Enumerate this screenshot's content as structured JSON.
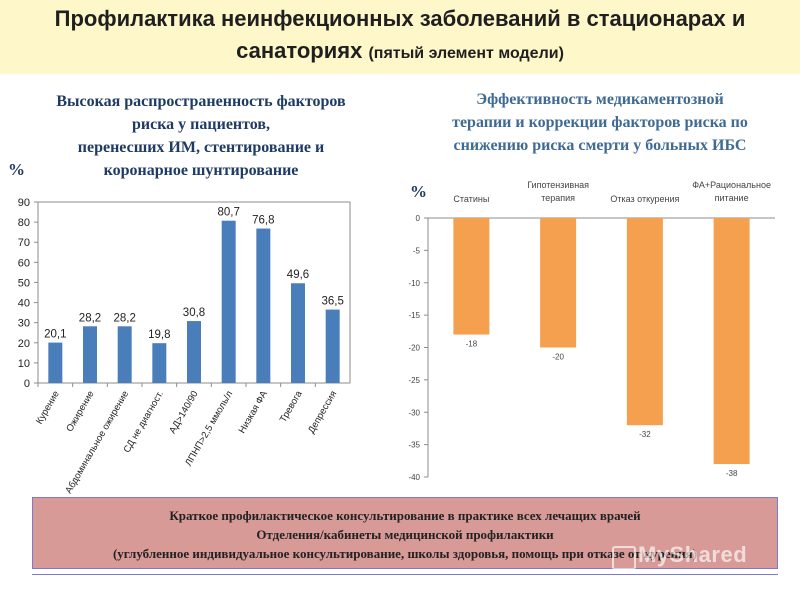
{
  "header": {
    "title_line1": "Профилактика неинфекционных заболеваний в стационарах и",
    "title_line2": "санаториях",
    "title_sub": "(пятый элемент модели)"
  },
  "left": {
    "title_lines": [
      "Высокая  распространенность факторов",
      "риска у пациентов,",
      "перенесших ИМ,  стентирование  и",
      "коронарное шунтирование"
    ],
    "unit_label": "%"
  },
  "right": {
    "title_lines": [
      "Эффективность медикаментозной",
      "терапии и коррекции факторов риска по",
      "снижению риска смерти у больных ИБС"
    ],
    "unit_label": "%"
  },
  "chart_data": [
    {
      "type": "bar",
      "title": "Высокая распространенность факторов риска у пациентов, перенесших ИМ, стентирование и коронарное шунтирование",
      "ylabel": "%",
      "ylim": [
        0,
        90
      ],
      "yticks": [
        0,
        10,
        20,
        30,
        40,
        50,
        60,
        70,
        80,
        90
      ],
      "grid": false,
      "categories": [
        "Курение",
        "Ожирение",
        "Абдоминальное ожирение",
        "СД не диагност.",
        "АД>140/90",
        "ЛПНП>2,5 ммоль/л",
        "Низкая ФА",
        "Тревога",
        "Депрессия"
      ],
      "values": [
        20.1,
        28.2,
        28.2,
        19.8,
        30.8,
        80.7,
        76.8,
        49.6,
        36.5
      ],
      "value_labels": [
        "20,1",
        "28,2",
        "28,2",
        "19,8",
        "30,8",
        "80,7",
        "76,8",
        "49,6",
        "36,5"
      ],
      "color": "#4a7ebb"
    },
    {
      "type": "bar",
      "title": "Эффективность медикаментозной терапии и коррекции факторов риска по снижению риска смерти у больных ИБС",
      "ylabel": "%",
      "ylim": [
        -40,
        0
      ],
      "yticks": [
        0,
        -5,
        -10,
        -15,
        -20,
        -25,
        -30,
        -35,
        -40
      ],
      "grid": false,
      "categories": [
        "Статины",
        "Гипотензивная терапия",
        "Отказ откурения",
        "ФА+Рациональное питание"
      ],
      "category_label_lines": [
        [
          "Статины"
        ],
        [
          "Гипотензивная",
          "терапия"
        ],
        [
          "Отказ откурения"
        ],
        [
          "ФА+Рациональное",
          "питание"
        ]
      ],
      "values": [
        -18,
        -20,
        -32,
        -38
      ],
      "value_labels": [
        "-18",
        "-20",
        "-32",
        "-38"
      ],
      "color": "#f5a04e"
    }
  ],
  "bottom": {
    "lines": [
      "Краткое профилактическое консультирование в практике всех лечащих врачей",
      "Отделения/кабинеты медицинской профилактики",
      "(углубленное индивидуальное консультирование, школы здоровья, помощь при отказе от курения)"
    ]
  },
  "watermark": "MyShared"
}
